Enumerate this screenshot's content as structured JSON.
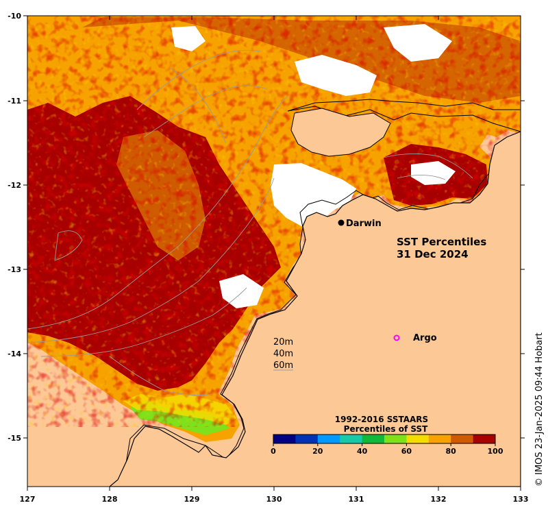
{
  "map": {
    "title_line1": "SST Percentiles",
    "title_line2": "31 Dec 2024",
    "lon_ticks": [
      "127",
      "128",
      "129",
      "130",
      "131",
      "132",
      "133"
    ],
    "lat_ticks": [
      "-10",
      "-11",
      "-12",
      "-13",
      "-14",
      "-15"
    ],
    "places": {
      "darwin": "Darwin",
      "argo": "Argo"
    },
    "depth_contours": [
      "20m",
      "40m",
      "60m"
    ],
    "colors": {
      "land": "#fcc896",
      "no_data": "#ffffff",
      "coast": "#000000",
      "contour": "#9a9a9a",
      "argo_marker": "#ff00ff"
    }
  },
  "legend": {
    "title_line1": "1992-2016 SSTAARS",
    "title_line2": "Percentiles of SST",
    "ticks": [
      "0",
      "20",
      "40",
      "60",
      "80",
      "100"
    ],
    "colors": [
      "#000080",
      "#0033b3",
      "#0099ff",
      "#19c8a8",
      "#11b83a",
      "#7fe11b",
      "#f3dc00",
      "#f6a300",
      "#cf5b00",
      "#a70000"
    ]
  },
  "credit": "© IMOS 23-Jan-2025 09:44 Hobart"
}
